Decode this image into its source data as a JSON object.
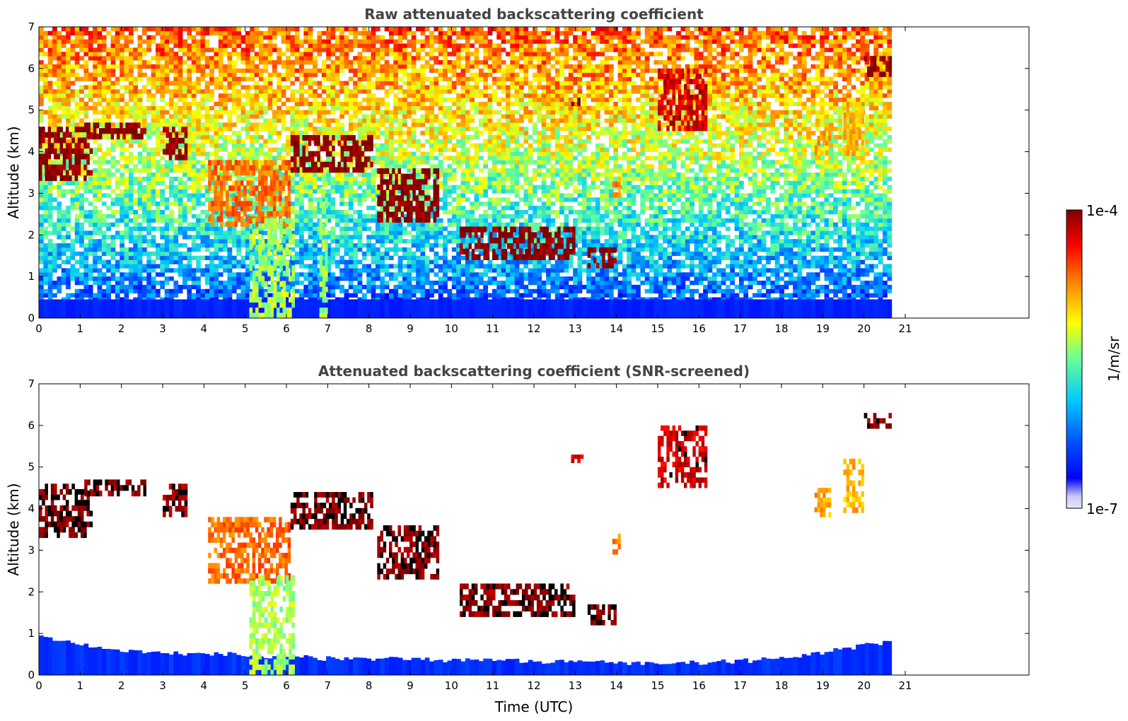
{
  "chart_data": [
    {
      "type": "heatmap",
      "title": "Raw attenuated backscattering coefficient",
      "xlabel": "",
      "ylabel": "Altitude (km)",
      "xlim": [
        0,
        24
      ],
      "ylim": [
        0,
        7
      ],
      "xticks": [
        "0",
        "1",
        "2",
        "3",
        "4",
        "5",
        "6",
        "7",
        "8",
        "9",
        "10",
        "11",
        "12",
        "13",
        "14",
        "15",
        "16",
        "17",
        "18",
        "19",
        "20",
        "21"
      ],
      "yticks": [
        "0",
        "1",
        "2",
        "3",
        "4",
        "5",
        "6",
        "7"
      ],
      "data_end_time": 20.67,
      "features": [
        {
          "t0": 0.0,
          "t1": 1.3,
          "z0": 3.3,
          "z1": 4.6,
          "level": 1.0
        },
        {
          "t0": 1.1,
          "t1": 2.6,
          "z0": 4.3,
          "z1": 4.7,
          "level": 1.0
        },
        {
          "t0": 3.0,
          "t1": 3.6,
          "z0": 3.8,
          "z1": 4.6,
          "level": 0.98
        },
        {
          "t0": 4.1,
          "t1": 6.1,
          "z0": 2.2,
          "z1": 3.8,
          "level": 0.78
        },
        {
          "t0": 5.1,
          "t1": 6.2,
          "z0": 0.0,
          "z1": 2.4,
          "level": 0.55
        },
        {
          "t0": 6.8,
          "t1": 7.0,
          "z0": 0.0,
          "z1": 3.4,
          "level": 0.55
        },
        {
          "t0": 6.1,
          "t1": 8.1,
          "z0": 3.5,
          "z1": 4.4,
          "level": 1.0
        },
        {
          "t0": 8.2,
          "t1": 9.7,
          "z0": 2.3,
          "z1": 3.6,
          "level": 1.0
        },
        {
          "t0": 10.2,
          "t1": 13.0,
          "z0": 1.4,
          "z1": 2.2,
          "level": 1.0
        },
        {
          "t0": 13.3,
          "t1": 14.0,
          "z0": 1.2,
          "z1": 1.7,
          "level": 1.0
        },
        {
          "t0": 12.9,
          "t1": 13.2,
          "z0": 5.1,
          "z1": 5.3,
          "level": 1.0
        },
        {
          "t0": 13.9,
          "t1": 14.1,
          "z0": 2.9,
          "z1": 3.4,
          "level": 0.75
        },
        {
          "t0": 15.0,
          "t1": 16.2,
          "z0": 4.5,
          "z1": 6.0,
          "level": 0.92
        },
        {
          "t0": 18.8,
          "t1": 19.2,
          "z0": 3.8,
          "z1": 4.5,
          "level": 0.72
        },
        {
          "t0": 19.5,
          "t1": 20.0,
          "z0": 3.9,
          "z1": 5.2,
          "level": 0.7
        },
        {
          "t0": 20.0,
          "t1": 20.67,
          "z0": 5.8,
          "z1": 6.3,
          "level": 1.0
        }
      ]
    },
    {
      "type": "heatmap",
      "title": "Attenuated backscattering coefficient (SNR-screened)",
      "xlabel": "Time (UTC)",
      "ylabel": "Altitude (km)",
      "xlim": [
        0,
        24
      ],
      "ylim": [
        0,
        7
      ],
      "xticks": [
        "0",
        "1",
        "2",
        "3",
        "4",
        "5",
        "6",
        "7",
        "8",
        "9",
        "10",
        "11",
        "12",
        "13",
        "14",
        "15",
        "16",
        "17",
        "18",
        "19",
        "20",
        "21"
      ],
      "yticks": [
        "0",
        "1",
        "2",
        "3",
        "4",
        "5",
        "6",
        "7"
      ],
      "data_end_time": 20.67,
      "surface_layer_top_km": [
        0.9,
        0.7,
        0.55,
        0.5,
        0.5,
        0.45,
        0.4,
        0.4,
        0.38,
        0.35,
        0.35,
        0.32,
        0.3,
        0.3,
        0.3,
        0.35,
        0.45,
        0.65,
        0.8
      ],
      "features": [
        {
          "t0": 0.0,
          "t1": 1.3,
          "z0": 3.3,
          "z1": 4.6,
          "level": 1.0
        },
        {
          "t0": 1.1,
          "t1": 2.6,
          "z0": 4.3,
          "z1": 4.7,
          "level": 1.0
        },
        {
          "t0": 3.0,
          "t1": 3.6,
          "z0": 3.8,
          "z1": 4.6,
          "level": 0.98
        },
        {
          "t0": 4.1,
          "t1": 6.1,
          "z0": 2.2,
          "z1": 3.8,
          "level": 0.78
        },
        {
          "t0": 5.1,
          "t1": 6.2,
          "z0": 0.0,
          "z1": 2.4,
          "level": 0.55
        },
        {
          "t0": 6.1,
          "t1": 8.1,
          "z0": 3.5,
          "z1": 4.4,
          "level": 1.0
        },
        {
          "t0": 8.2,
          "t1": 9.7,
          "z0": 2.3,
          "z1": 3.6,
          "level": 1.0
        },
        {
          "t0": 10.2,
          "t1": 13.0,
          "z0": 1.4,
          "z1": 2.2,
          "level": 1.0
        },
        {
          "t0": 13.3,
          "t1": 14.0,
          "z0": 1.2,
          "z1": 1.7,
          "level": 1.0
        },
        {
          "t0": 12.9,
          "t1": 13.2,
          "z0": 5.1,
          "z1": 5.3,
          "level": 0.92
        },
        {
          "t0": 13.9,
          "t1": 14.1,
          "z0": 2.9,
          "z1": 3.4,
          "level": 0.75
        },
        {
          "t0": 15.0,
          "t1": 16.2,
          "z0": 4.5,
          "z1": 6.0,
          "level": 0.92
        },
        {
          "t0": 18.8,
          "t1": 19.2,
          "z0": 3.8,
          "z1": 4.5,
          "level": 0.72
        },
        {
          "t0": 19.5,
          "t1": 20.0,
          "z0": 3.9,
          "z1": 5.2,
          "level": 0.7
        },
        {
          "t0": 20.0,
          "t1": 20.67,
          "z0": 5.8,
          "z1": 6.3,
          "level": 1.0
        }
      ]
    }
  ],
  "colorbar": {
    "min_label": "1e-7",
    "max_label": "1e-4",
    "label": "1/m/sr",
    "colormap": [
      "#e6e6fa",
      "#0000ff",
      "#00c8ff",
      "#66ff99",
      "#ffff00",
      "#ff8000",
      "#ff0000",
      "#800000"
    ]
  }
}
